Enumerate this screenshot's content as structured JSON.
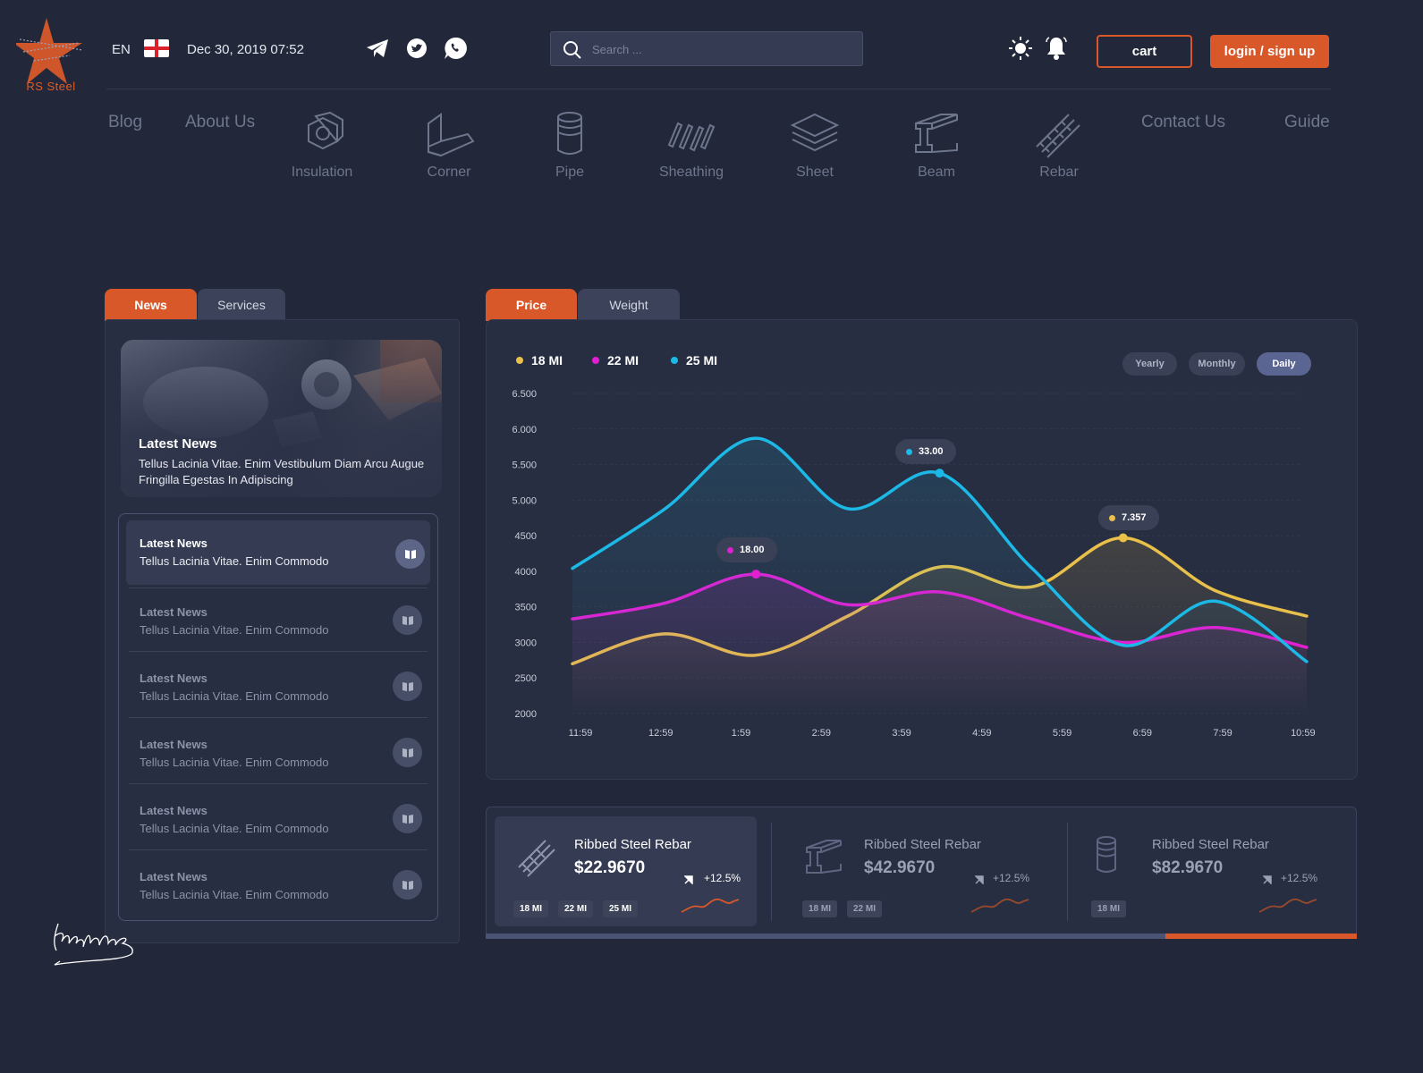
{
  "brand": {
    "name": "RS Steel",
    "accent": "#d9582a"
  },
  "header": {
    "language": "EN",
    "datetime": "Dec 30, 2019 07:52",
    "search_placeholder": "Search ...",
    "cart_label": "cart",
    "login_label": "login / sign up"
  },
  "nav": {
    "blog": "Blog",
    "about": "About Us",
    "contact": "Contact Us",
    "guide": "Guide",
    "categories": [
      {
        "label": "Insulation",
        "icon": "insulation-icon"
      },
      {
        "label": "Corner",
        "icon": "corner-icon"
      },
      {
        "label": "Pipe",
        "icon": "pipe-icon"
      },
      {
        "label": "Sheathing",
        "icon": "sheathing-icon"
      },
      {
        "label": "Sheet",
        "icon": "sheet-icon"
      },
      {
        "label": "Beam",
        "icon": "beam-icon"
      },
      {
        "label": "Rebar",
        "icon": "rebar-icon"
      }
    ]
  },
  "news_panel": {
    "tabs": [
      "News",
      "Services"
    ],
    "active_tab": "News",
    "hero": {
      "title": "Latest News",
      "text": "Tellus Lacinia Vitae. Enim  Vestibulum Diam Arcu  Augue Fringilla Egestas In Adipiscing"
    },
    "items": [
      {
        "title": "Latest News",
        "text": "Tellus Lacinia Vitae. Enim Commodo",
        "active": true
      },
      {
        "title": "Latest News",
        "text": "Tellus Lacinia Vitae. Enim Commodo",
        "active": false
      },
      {
        "title": "Latest News",
        "text": "Tellus Lacinia Vitae. Enim Commodo",
        "active": false
      },
      {
        "title": "Latest News",
        "text": "Tellus Lacinia Vitae. Enim Commodo",
        "active": false
      },
      {
        "title": "Latest News",
        "text": "Tellus Lacinia Vitae. Enim Commodo",
        "active": false
      },
      {
        "title": "Latest News",
        "text": "Tellus Lacinia Vitae. Enim Commodo",
        "active": false
      }
    ]
  },
  "chart_panel": {
    "tabs": [
      "Price",
      "Weight"
    ],
    "active_tab": "Price",
    "ranges": [
      "Yearly",
      "Monthly",
      "Daily"
    ],
    "active_range": "Daily",
    "tooltips": [
      {
        "series": "22 MI",
        "value": "18.00"
      },
      {
        "series": "25 MI",
        "value": "33.00"
      },
      {
        "series": "18 MI",
        "value": "7.357"
      }
    ]
  },
  "chart_data": {
    "type": "line",
    "y_ticks": [
      "6.500",
      "6.000",
      "5.500",
      "5.000",
      "4500",
      "4000",
      "3500",
      "3000",
      "2500",
      "2000"
    ],
    "x_ticks": [
      "11:59",
      "12:59",
      "1:59",
      "2:59",
      "3:59",
      "4:59",
      "5:59",
      "6:59",
      "7:59",
      "10:59"
    ],
    "ylim": [
      2000,
      6500
    ],
    "grid": true,
    "legend_position": "top-left",
    "series": [
      {
        "name": "18 MI",
        "color": "#e8c04a",
        "values": [
          2700,
          3120,
          2820,
          3370,
          4060,
          3780,
          4470,
          3730,
          3370
        ]
      },
      {
        "name": "22 MI",
        "color": "#e11fd2",
        "values": [
          3330,
          3550,
          3960,
          3530,
          3710,
          3330,
          3000,
          3210,
          2930
        ]
      },
      {
        "name": "25 MI",
        "color": "#1cb8e6",
        "values": [
          4040,
          4870,
          5870,
          4880,
          5380,
          4050,
          2960,
          3580,
          2730
        ]
      }
    ]
  },
  "products": [
    {
      "name": "Ribbed Steel Rebar",
      "price": "$22.9670",
      "change": "+12.5%",
      "icon": "rebar-icon",
      "tags": [
        "18 MI",
        "22 MI",
        "25 MI"
      ],
      "active": true
    },
    {
      "name": "Ribbed Steel Rebar",
      "price": "$42.9670",
      "change": "+12.5%",
      "icon": "beam-icon",
      "tags": [
        "18 MI",
        "22 MI"
      ],
      "active": false
    },
    {
      "name": "Ribbed Steel Rebar",
      "price": "$82.9670",
      "change": "+12.5%",
      "icon": "pipe-icon",
      "tags": [
        "18 MI"
      ],
      "active": false
    }
  ],
  "product_slider_progress": 0.22
}
